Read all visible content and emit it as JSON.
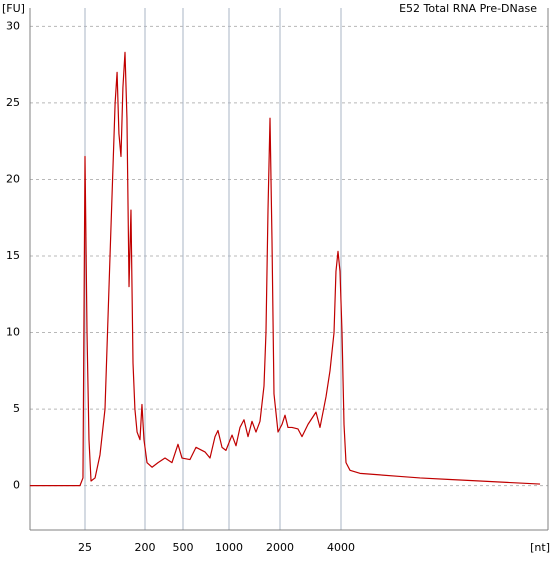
{
  "chart_data": {
    "type": "line",
    "title": "E52 Total RNA Pre-DNase",
    "y_label": "[FU]",
    "x_label": "[nt]",
    "color": "#c00000",
    "grid": true,
    "ylim": [
      -2.9,
      31.2
    ],
    "yticks": [
      0,
      5,
      10,
      15,
      20,
      25,
      30
    ],
    "xlim": [
      3.7,
      38400
    ],
    "xticks": [
      25,
      200,
      500,
      1000,
      2000,
      4000
    ],
    "x": [
      3.7,
      21,
      23.3,
      25,
      26.8,
      28.7,
      30.8,
      35.4,
      42,
      50,
      59.5,
      71,
      76,
      81,
      87,
      93,
      100,
      107,
      115,
      123,
      132,
      141,
      152,
      168,
      180,
      193,
      210,
      237,
      274,
      324,
      383,
      443,
      488,
      555,
      608,
      696,
      751,
      810,
      847,
      900,
      955,
      1042,
      1100,
      1161,
      1226,
      1295,
      1367,
      1443,
      1524,
      1609,
      1653,
      1699,
      1746,
      1794,
      1843,
      1947,
      2046,
      2117,
      2190,
      2292,
      2454,
      2568,
      2749,
      2877,
      3011,
      3151,
      3373,
      3530,
      3695,
      3778,
      3866,
      3955,
      4046,
      4139,
      4234,
      4431,
      4963,
      6233,
      7820,
      9816,
      13800,
      19400,
      27300,
      38400
    ],
    "values": [
      0,
      0,
      0.5,
      21.5,
      10,
      3,
      0.3,
      0.5,
      2,
      5,
      15,
      25,
      27,
      23,
      21.5,
      26,
      28.3,
      24,
      13,
      18,
      8,
      5,
      3.5,
      3,
      5.3,
      3,
      1.5,
      1.2,
      1.5,
      1.8,
      1.5,
      2.7,
      1.8,
      1.7,
      2.5,
      2.2,
      1.8,
      3.2,
      3.6,
      2.5,
      2.3,
      3.3,
      2.6,
      3.8,
      4.3,
      3.2,
      4.2,
      3.5,
      4.2,
      6.5,
      10,
      18,
      24,
      16,
      6,
      3.5,
      4,
      4.6,
      3.8,
      3.8,
      3.7,
      3.2,
      4,
      4.4,
      4.8,
      3.8,
      5.8,
      7.5,
      10,
      14,
      15.3,
      14,
      10,
      4,
      1.5,
      1,
      0.8,
      0.7,
      0.6,
      0.5,
      0.4,
      0.3,
      0.2,
      0.1
    ]
  }
}
